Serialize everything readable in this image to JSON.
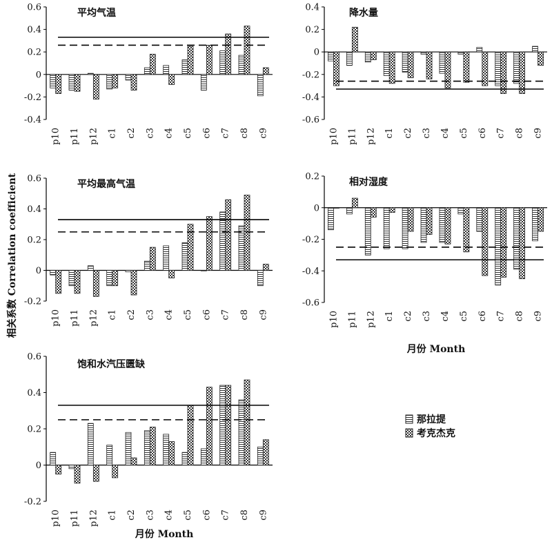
{
  "figure": {
    "ylabel": "相关系数 Correlation coefficient",
    "xlabel_right": "月份 Month",
    "xlabel_bottom": "月份 Month",
    "legend": [
      {
        "label": "那拉提",
        "pattern": "horizontal-stripes"
      },
      {
        "label": "考克杰克",
        "pattern": "checker"
      }
    ],
    "colors": {
      "axis": "#000000",
      "bar_stroke": "#222222",
      "fill": "#ffffff"
    }
  },
  "chart_data": [
    {
      "type": "bar",
      "title": "平均气温",
      "categories": [
        "p10",
        "p11",
        "p12",
        "c1",
        "c2",
        "c3",
        "c4",
        "c5",
        "c6",
        "c7",
        "c8",
        "c9"
      ],
      "ylim": [
        -0.4,
        0.6
      ],
      "yticks": [
        "-0.4",
        "-0.2",
        "0",
        "0.2",
        "0.4",
        "0.6"
      ],
      "series": [
        {
          "name": "那拉提",
          "values": [
            -0.12,
            -0.14,
            0.01,
            -0.13,
            -0.05,
            0.06,
            0.08,
            0.13,
            -0.14,
            0.21,
            0.17,
            -0.19
          ]
        },
        {
          "name": "考克杰克",
          "values": [
            -0.17,
            -0.15,
            -0.22,
            -0.12,
            -0.14,
            0.18,
            -0.09,
            0.25,
            0.26,
            0.36,
            0.43,
            0.06
          ]
        }
      ],
      "reference_lines": [
        {
          "style": "solid",
          "value": 0.33
        },
        {
          "style": "dashed",
          "value": 0.26
        }
      ]
    },
    {
      "type": "bar",
      "title": "降水量",
      "categories": [
        "p10",
        "p11",
        "p12",
        "c1",
        "c2",
        "c3",
        "c4",
        "c5",
        "c6",
        "c7",
        "c8",
        "c9"
      ],
      "ylim": [
        -0.6,
        0.4
      ],
      "yticks": [
        "-0.6",
        "-0.4",
        "-0.2",
        "0",
        "0.2",
        "0.4"
      ],
      "series": [
        {
          "name": "那拉提",
          "values": [
            -0.08,
            -0.12,
            -0.09,
            -0.21,
            -0.18,
            -0.02,
            -0.19,
            -0.02,
            0.04,
            -0.3,
            -0.28,
            0.05
          ]
        },
        {
          "name": "考克杰克",
          "values": [
            -0.3,
            0.22,
            -0.07,
            -0.28,
            -0.23,
            -0.24,
            -0.32,
            -0.27,
            -0.3,
            -0.37,
            -0.37,
            -0.12
          ]
        }
      ],
      "reference_lines": [
        {
          "style": "solid",
          "value": -0.33
        },
        {
          "style": "dashed",
          "value": -0.26
        }
      ]
    },
    {
      "type": "bar",
      "title": "平均最高气温",
      "categories": [
        "p10",
        "p11",
        "p12",
        "c1",
        "c2",
        "c3",
        "c4",
        "c5",
        "c6",
        "c7",
        "c8",
        "c9"
      ],
      "ylim": [
        -0.2,
        0.6
      ],
      "yticks": [
        "-0.2",
        "0",
        "0.2",
        "0.4",
        "0.6"
      ],
      "series": [
        {
          "name": "那拉提",
          "values": [
            -0.03,
            -0.1,
            0.03,
            -0.1,
            -0.01,
            0.06,
            0.16,
            0.18,
            0.0,
            0.38,
            0.29,
            -0.1
          ]
        },
        {
          "name": "考克杰克",
          "values": [
            -0.15,
            -0.15,
            -0.17,
            -0.1,
            -0.16,
            0.15,
            -0.05,
            0.3,
            0.35,
            0.46,
            0.49,
            0.04
          ]
        }
      ],
      "reference_lines": [
        {
          "style": "solid",
          "value": 0.33
        },
        {
          "style": "dashed",
          "value": 0.25
        }
      ]
    },
    {
      "type": "bar",
      "title": "相对湿度",
      "categories": [
        "p10",
        "p11",
        "p12",
        "c1",
        "c2",
        "c3",
        "c4",
        "c5",
        "c6",
        "c7",
        "c8",
        "c9"
      ],
      "ylim": [
        -0.6,
        0.2
      ],
      "yticks": [
        "-0.6",
        "-0.4",
        "-0.2",
        "0",
        "0.2"
      ],
      "series": [
        {
          "name": "那拉提",
          "values": [
            -0.14,
            -0.04,
            -0.3,
            -0.26,
            -0.26,
            -0.22,
            -0.22,
            -0.04,
            -0.15,
            -0.49,
            -0.39,
            -0.21
          ]
        },
        {
          "name": "考克杰克",
          "values": [
            0.0,
            0.06,
            -0.06,
            -0.03,
            -0.15,
            -0.17,
            -0.23,
            -0.28,
            -0.43,
            -0.44,
            -0.45,
            -0.15
          ]
        }
      ],
      "reference_lines": [
        {
          "style": "solid",
          "value": -0.33
        },
        {
          "style": "dashed",
          "value": -0.25
        }
      ]
    },
    {
      "type": "bar",
      "title": "饱和水汽压匮缺",
      "categories": [
        "p10",
        "p11",
        "p12",
        "c1",
        "c2",
        "c3",
        "c4",
        "c5",
        "c6",
        "c7",
        "c8",
        "c9"
      ],
      "ylim": [
        -0.2,
        0.6
      ],
      "yticks": [
        "-0.2",
        "0",
        "0.2",
        "0.4",
        "0.6"
      ],
      "series": [
        {
          "name": "那拉提",
          "values": [
            0.07,
            -0.02,
            0.23,
            0.11,
            0.18,
            0.19,
            0.17,
            0.07,
            0.09,
            0.44,
            0.36,
            0.1
          ]
        },
        {
          "name": "考克杰克",
          "values": [
            -0.05,
            -0.1,
            -0.09,
            -0.07,
            0.04,
            0.21,
            0.13,
            0.33,
            0.43,
            0.44,
            0.47,
            0.14
          ]
        }
      ],
      "reference_lines": [
        {
          "style": "solid",
          "value": 0.33
        },
        {
          "style": "dashed",
          "value": 0.25
        }
      ]
    }
  ]
}
